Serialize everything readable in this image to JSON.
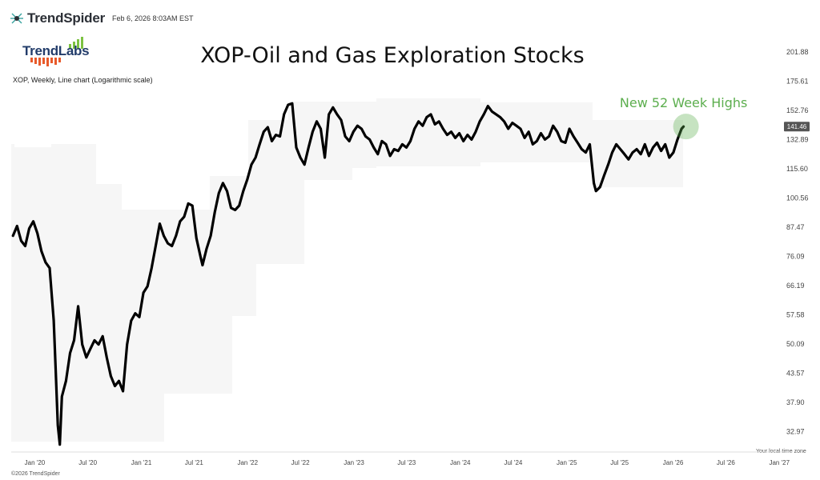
{
  "header": {
    "brand": "TrendSpider",
    "timestamp": "Feb 6, 2026 8:03AM EST"
  },
  "logo": {
    "text": "TrendLabs"
  },
  "subtitle": "XOP, Weekly, Line chart (Logarithmic scale)",
  "footer": {
    "copyright": "©2026 TrendSpider",
    "timezone_note": "Your local time zone"
  },
  "colors": {
    "line": "#000000",
    "band": "#f6f6f6",
    "highlight": "#5cae4e",
    "badge": "#555555"
  },
  "chart_data": {
    "type": "line",
    "title": "XOP-Oil and Gas Exploration Stocks",
    "scale": "log",
    "ylim": [
      30.5,
      218
    ],
    "y_ticks": [
      "201.88",
      "175.61",
      "152.76",
      "132.89",
      "115.60",
      "100.56",
      "87.47",
      "76.09",
      "66.19",
      "57.58",
      "50.09",
      "43.57",
      "37.90",
      "32.97"
    ],
    "x_ticks": [
      "Jan '20",
      "Jul '20",
      "Jan '21",
      "Jul '21",
      "Jan '22",
      "Jul '22",
      "Jan '23",
      "Jul '23",
      "Jan '24",
      "Jul '24",
      "Jan '25",
      "Jul '25",
      "Jan '26",
      "Jul '26",
      "Jan '27"
    ],
    "x_range": [
      "2019-10-12",
      "2027-02-16"
    ],
    "last_price": "141.46",
    "annotation": "New 52 Week Highs",
    "series": [
      {
        "points": [
          [
            "2019-10-18",
            84
          ],
          [
            "2019-11-01",
            88
          ],
          [
            "2019-11-15",
            82
          ],
          [
            "2019-11-29",
            80
          ],
          [
            "2019-12-13",
            87
          ],
          [
            "2019-12-27",
            90
          ],
          [
            "2020-01-10",
            85
          ],
          [
            "2020-01-24",
            78
          ],
          [
            "2020-02-07",
            74
          ],
          [
            "2020-02-21",
            72
          ],
          [
            "2020-03-06",
            56
          ],
          [
            "2020-03-13",
            44
          ],
          [
            "2020-03-20",
            34
          ],
          [
            "2020-03-27",
            31
          ],
          [
            "2020-04-03",
            39
          ],
          [
            "2020-04-17",
            42
          ],
          [
            "2020-05-01",
            48
          ],
          [
            "2020-05-15",
            51
          ],
          [
            "2020-05-29",
            60
          ],
          [
            "2020-06-12",
            50
          ],
          [
            "2020-06-26",
            47
          ],
          [
            "2020-07-10",
            49
          ],
          [
            "2020-07-24",
            51
          ],
          [
            "2020-08-07",
            50
          ],
          [
            "2020-08-21",
            52
          ],
          [
            "2020-09-04",
            47
          ],
          [
            "2020-09-18",
            43
          ],
          [
            "2020-10-02",
            41
          ],
          [
            "2020-10-16",
            42
          ],
          [
            "2020-10-30",
            40
          ],
          [
            "2020-11-13",
            50
          ],
          [
            "2020-11-27",
            56
          ],
          [
            "2020-12-11",
            58
          ],
          [
            "2020-12-25",
            57
          ],
          [
            "2021-01-08",
            64
          ],
          [
            "2021-01-22",
            66
          ],
          [
            "2021-02-05",
            72
          ],
          [
            "2021-02-19",
            80
          ],
          [
            "2021-03-05",
            89
          ],
          [
            "2021-03-19",
            84
          ],
          [
            "2021-04-02",
            81
          ],
          [
            "2021-04-16",
            80
          ],
          [
            "2021-04-30",
            84
          ],
          [
            "2021-05-14",
            90
          ],
          [
            "2021-05-28",
            92
          ],
          [
            "2021-06-11",
            98
          ],
          [
            "2021-06-25",
            97
          ],
          [
            "2021-07-09",
            83
          ],
          [
            "2021-07-23",
            76
          ],
          [
            "2021-07-30",
            73
          ],
          [
            "2021-08-13",
            79
          ],
          [
            "2021-08-27",
            84
          ],
          [
            "2021-09-10",
            94
          ],
          [
            "2021-09-24",
            103
          ],
          [
            "2021-10-08",
            108
          ],
          [
            "2021-10-22",
            104
          ],
          [
            "2021-11-05",
            96
          ],
          [
            "2021-11-19",
            95
          ],
          [
            "2021-12-03",
            97
          ],
          [
            "2021-12-17",
            104
          ],
          [
            "2021-12-31",
            110
          ],
          [
            "2022-01-14",
            118
          ],
          [
            "2022-01-28",
            122
          ],
          [
            "2022-02-11",
            130
          ],
          [
            "2022-02-25",
            138
          ],
          [
            "2022-03-11",
            141
          ],
          [
            "2022-03-25",
            132
          ],
          [
            "2022-04-08",
            136
          ],
          [
            "2022-04-22",
            135
          ],
          [
            "2022-05-06",
            150
          ],
          [
            "2022-05-20",
            157
          ],
          [
            "2022-06-03",
            158
          ],
          [
            "2022-06-17",
            128
          ],
          [
            "2022-07-01",
            122
          ],
          [
            "2022-07-15",
            118
          ],
          [
            "2022-07-29",
            128
          ],
          [
            "2022-08-12",
            138
          ],
          [
            "2022-08-26",
            145
          ],
          [
            "2022-09-09",
            140
          ],
          [
            "2022-09-23",
            122
          ],
          [
            "2022-10-07",
            150
          ],
          [
            "2022-10-21",
            155
          ],
          [
            "2022-11-04",
            150
          ],
          [
            "2022-11-18",
            146
          ],
          [
            "2022-12-02",
            135
          ],
          [
            "2022-12-16",
            132
          ],
          [
            "2022-12-30",
            138
          ],
          [
            "2023-01-13",
            142
          ],
          [
            "2023-01-27",
            140
          ],
          [
            "2023-02-10",
            135
          ],
          [
            "2023-02-24",
            133
          ],
          [
            "2023-03-10",
            128
          ],
          [
            "2023-03-24",
            124
          ],
          [
            "2023-04-07",
            132
          ],
          [
            "2023-04-21",
            130
          ],
          [
            "2023-05-05",
            123
          ],
          [
            "2023-05-19",
            127
          ],
          [
            "2023-06-02",
            126
          ],
          [
            "2023-06-16",
            130
          ],
          [
            "2023-06-30",
            128
          ],
          [
            "2023-07-14",
            132
          ],
          [
            "2023-07-28",
            140
          ],
          [
            "2023-08-11",
            145
          ],
          [
            "2023-08-25",
            142
          ],
          [
            "2023-09-08",
            148
          ],
          [
            "2023-09-22",
            150
          ],
          [
            "2023-10-06",
            143
          ],
          [
            "2023-10-20",
            145
          ],
          [
            "2023-11-03",
            140
          ],
          [
            "2023-11-17",
            136
          ],
          [
            "2023-12-01",
            138
          ],
          [
            "2023-12-15",
            134
          ],
          [
            "2023-12-29",
            137
          ],
          [
            "2024-01-12",
            132
          ],
          [
            "2024-01-26",
            136
          ],
          [
            "2024-02-09",
            133
          ],
          [
            "2024-02-23",
            138
          ],
          [
            "2024-03-08",
            145
          ],
          [
            "2024-03-22",
            150
          ],
          [
            "2024-04-05",
            156
          ],
          [
            "2024-04-19",
            152
          ],
          [
            "2024-05-03",
            150
          ],
          [
            "2024-05-17",
            148
          ],
          [
            "2024-05-31",
            145
          ],
          [
            "2024-06-14",
            140
          ],
          [
            "2024-06-28",
            144
          ],
          [
            "2024-07-12",
            142
          ],
          [
            "2024-07-26",
            140
          ],
          [
            "2024-08-09",
            134
          ],
          [
            "2024-08-23",
            138
          ],
          [
            "2024-09-06",
            130
          ],
          [
            "2024-09-20",
            132
          ],
          [
            "2024-10-04",
            137
          ],
          [
            "2024-10-18",
            133
          ],
          [
            "2024-11-01",
            135
          ],
          [
            "2024-11-15",
            142
          ],
          [
            "2024-11-29",
            138
          ],
          [
            "2024-12-13",
            132
          ],
          [
            "2024-12-27",
            131
          ],
          [
            "2025-01-10",
            140
          ],
          [
            "2025-01-24",
            135
          ],
          [
            "2025-02-07",
            131
          ],
          [
            "2025-02-21",
            127
          ],
          [
            "2025-03-07",
            125
          ],
          [
            "2025-03-21",
            130
          ],
          [
            "2025-04-04",
            108
          ],
          [
            "2025-04-11",
            104
          ],
          [
            "2025-04-25",
            106
          ],
          [
            "2025-05-09",
            112
          ],
          [
            "2025-05-23",
            118
          ],
          [
            "2025-06-06",
            125
          ],
          [
            "2025-06-20",
            130
          ],
          [
            "2025-07-04",
            127
          ],
          [
            "2025-07-18",
            124
          ],
          [
            "2025-08-01",
            121
          ],
          [
            "2025-08-15",
            125
          ],
          [
            "2025-08-29",
            127
          ],
          [
            "2025-09-12",
            124
          ],
          [
            "2025-09-26",
            130
          ],
          [
            "2025-10-10",
            123
          ],
          [
            "2025-10-24",
            128
          ],
          [
            "2025-11-07",
            131
          ],
          [
            "2025-11-21",
            126
          ],
          [
            "2025-12-05",
            130
          ],
          [
            "2025-12-19",
            122
          ],
          [
            "2026-01-02",
            125
          ],
          [
            "2026-01-16",
            133
          ],
          [
            "2026-01-30",
            140
          ],
          [
            "2026-02-06",
            141.5
          ]
        ]
      }
    ]
  }
}
